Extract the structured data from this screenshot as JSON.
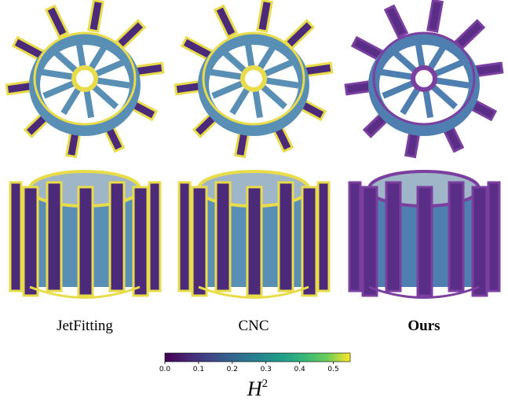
{
  "columns": [
    "JetFitting",
    "CNC",
    "Ours"
  ],
  "colorbar": {
    "label": "H",
    "label_superscript": "2",
    "lim": [
      0,
      0.55
    ],
    "ticks": [
      {
        "value": 0,
        "label": "0.0"
      },
      {
        "value": 0.1,
        "label": "0.1"
      },
      {
        "value": 0.2,
        "label": "0.2"
      },
      {
        "value": 0.3,
        "label": "0.3"
      },
      {
        "value": 0.4,
        "label": "0.4"
      },
      {
        "value": 0.5,
        "label": "0.5"
      }
    ]
  }
}
